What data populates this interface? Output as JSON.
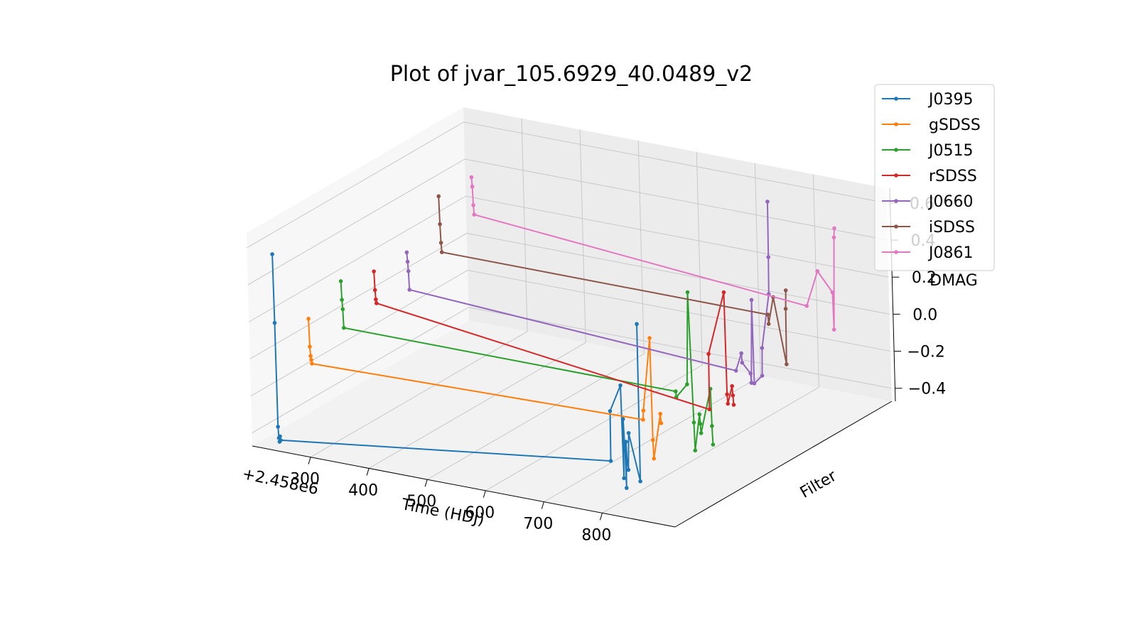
{
  "chart_data": {
    "type": "line3d",
    "title": "Plot of jvar_105.6929_40.0489_v2",
    "x_label": "Time (HDJ)",
    "y_label": "Filter",
    "z_label": "DMAG",
    "x_offset_label": "+2.458e6",
    "xlim": [
      200,
      925
    ],
    "xticks": [
      300,
      400,
      500,
      600,
      700,
      800
    ],
    "zlim": [
      -0.47,
      0.68
    ],
    "zticks": [
      {
        "value": -0.4,
        "label": "−0.4"
      },
      {
        "value": -0.2,
        "label": "−0.2"
      },
      {
        "value": 0,
        "label": "0.0"
      },
      0.2,
      0.4,
      0.6
    ],
    "grid": true,
    "legend": "upper right",
    "series": [
      {
        "name": "J0395",
        "color": "#1f77b4",
        "x": [
          226,
          227,
          228,
          229,
          230,
          231,
          232,
          800,
          801,
          820,
          822,
          823,
          825,
          826,
          827,
          828,
          830,
          832,
          850,
          851
        ],
        "values": [
          0.55,
          0.18,
          -0.38,
          -0.44,
          -0.46,
          -0.43,
          -0.45,
          -0.22,
          0.05,
          0.2,
          -0.3,
          0.02,
          -0.15,
          -0.35,
          -0.1,
          -0.2,
          -0.25,
          -0.05,
          -0.3,
          0.55
        ]
      },
      {
        "name": "gSDSS",
        "color": "#ff7f0e",
        "x": [
          228,
          229,
          230,
          231,
          232,
          800,
          801,
          815,
          816,
          817,
          830,
          831
        ],
        "values": [
          0.1,
          -0.05,
          -0.1,
          -0.12,
          -0.14,
          -0.1,
          -0.05,
          0.35,
          -0.2,
          -0.3,
          -0.05,
          -0.1
        ]
      },
      {
        "name": "J0515",
        "color": "#2ca02c",
        "x": [
          228,
          229,
          230,
          231,
          800,
          801,
          820,
          825,
          830,
          831,
          840,
          841,
          842,
          860,
          861,
          862
        ],
        "values": [
          0.2,
          0.1,
          0.05,
          -0.05,
          -0.05,
          -0.08,
          0.0,
          0.5,
          -0.2,
          -0.35,
          -0.15,
          -0.2,
          -0.25,
          0.0,
          -0.2,
          -0.3
        ]
      },
      {
        "name": "rSDSS",
        "color": "#d62728",
        "x": [
          228,
          229,
          230,
          231,
          800,
          801,
          830,
          831,
          832,
          840,
          841,
          842
        ],
        "values": [
          0.15,
          0.05,
          0.0,
          -0.02,
          -0.25,
          0.05,
          0.4,
          -0.15,
          -0.2,
          -0.1,
          -0.15,
          -0.2
        ]
      },
      {
        "name": "J0660",
        "color": "#9467bd",
        "x": [
          228,
          229,
          230,
          231,
          790,
          800,
          801,
          815,
          816,
          820,
          821,
          835,
          836,
          850,
          851,
          852
        ],
        "values": [
          0.15,
          0.1,
          0.05,
          -0.05,
          -0.15,
          -0.05,
          -0.1,
          -0.15,
          -0.2,
          0.25,
          -0.2,
          -0.15,
          0.0,
          0.3,
          0.5,
          0.8
        ]
      },
      {
        "name": "iSDSS",
        "color": "#8c564b",
        "x": [
          228,
          229,
          230,
          231,
          790,
          791,
          800,
          820,
          821,
          822
        ],
        "values": [
          0.35,
          0.2,
          0.1,
          0.05,
          0.05,
          0.0,
          0.15,
          -0.2,
          0.1,
          0.2
        ]
      },
      {
        "name": "J0861",
        "color": "#e377c2",
        "x": [
          228,
          229,
          230,
          231,
          800,
          820,
          845,
          846,
          850,
          851
        ],
        "values": [
          0.35,
          0.3,
          0.2,
          0.15,
          0.0,
          0.2,
          0.1,
          -0.1,
          0.4,
          0.45
        ]
      }
    ]
  }
}
